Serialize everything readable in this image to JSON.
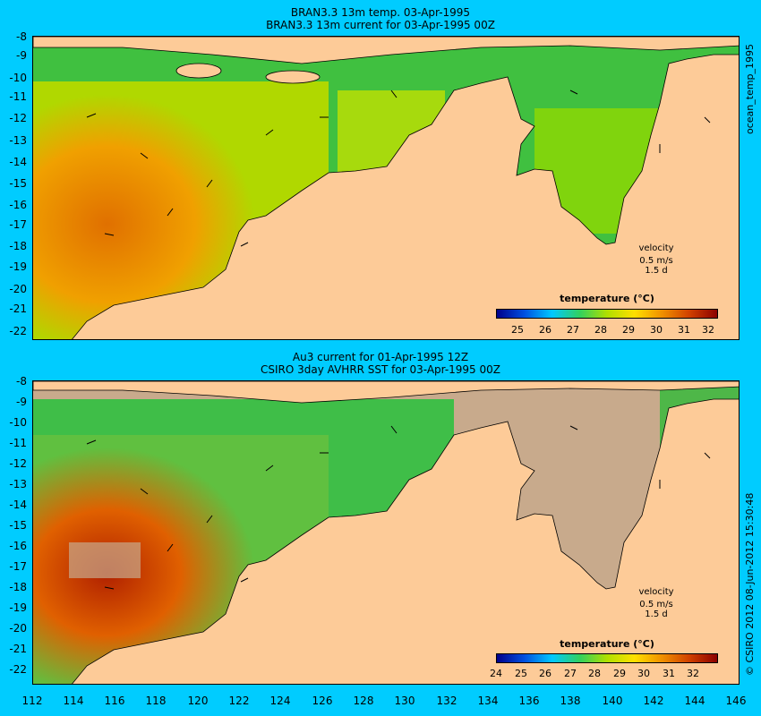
{
  "top_panel": {
    "title_line1": "BRAN3.3 13m temp. 03-Apr-1995",
    "title_line2": "BRAN3.3 13m current for 03-Apr-1995 00Z",
    "side_label": "ocean_temp_1995",
    "colorbar_title": "temperature (°C)",
    "colorbar_ticks": [
      "25",
      "26",
      "27",
      "28",
      "29",
      "30",
      "31",
      "32"
    ],
    "velocity_label": "velocity",
    "velocity_scale": "0.5 m/s",
    "velocity_time": "1.5 d"
  },
  "bottom_panel": {
    "title_line1": "Au3 current for 01-Apr-1995 12Z",
    "title_line2": "CSIRO 3day AVHRR SST for 03-Apr-1995 00Z",
    "side_label": "© CSIRO 2012   08-Jun-2012 15:30:48",
    "colorbar_title": "temperature (°C)",
    "colorbar_ticks": [
      "24",
      "25",
      "26",
      "27",
      "28",
      "29",
      "30",
      "31",
      "32"
    ],
    "velocity_label": "velocity",
    "velocity_scale": "0.5 m/s",
    "velocity_time": "1.5 d"
  },
  "latitude_labels": [
    "-8",
    "-9",
    "-10",
    "-11",
    "-12",
    "-13",
    "-14",
    "-15",
    "-16",
    "-17",
    "-18",
    "-19",
    "-20",
    "-21",
    "-22"
  ],
  "longitude_labels": [
    "112",
    "114",
    "116",
    "118",
    "120",
    "122",
    "124",
    "126",
    "128",
    "130",
    "132",
    "134",
    "136",
    "138",
    "140",
    "142",
    "144",
    "146"
  ],
  "colors": {
    "background": "#00ccff",
    "land": "#fdcb98",
    "no_data": "#c8aa8c",
    "colorbar_stops": [
      "#00008b",
      "#0050e0",
      "#00c8ff",
      "#30d060",
      "#b0e000",
      "#ffe000",
      "#f09000",
      "#d04000",
      "#8b0000"
    ]
  }
}
